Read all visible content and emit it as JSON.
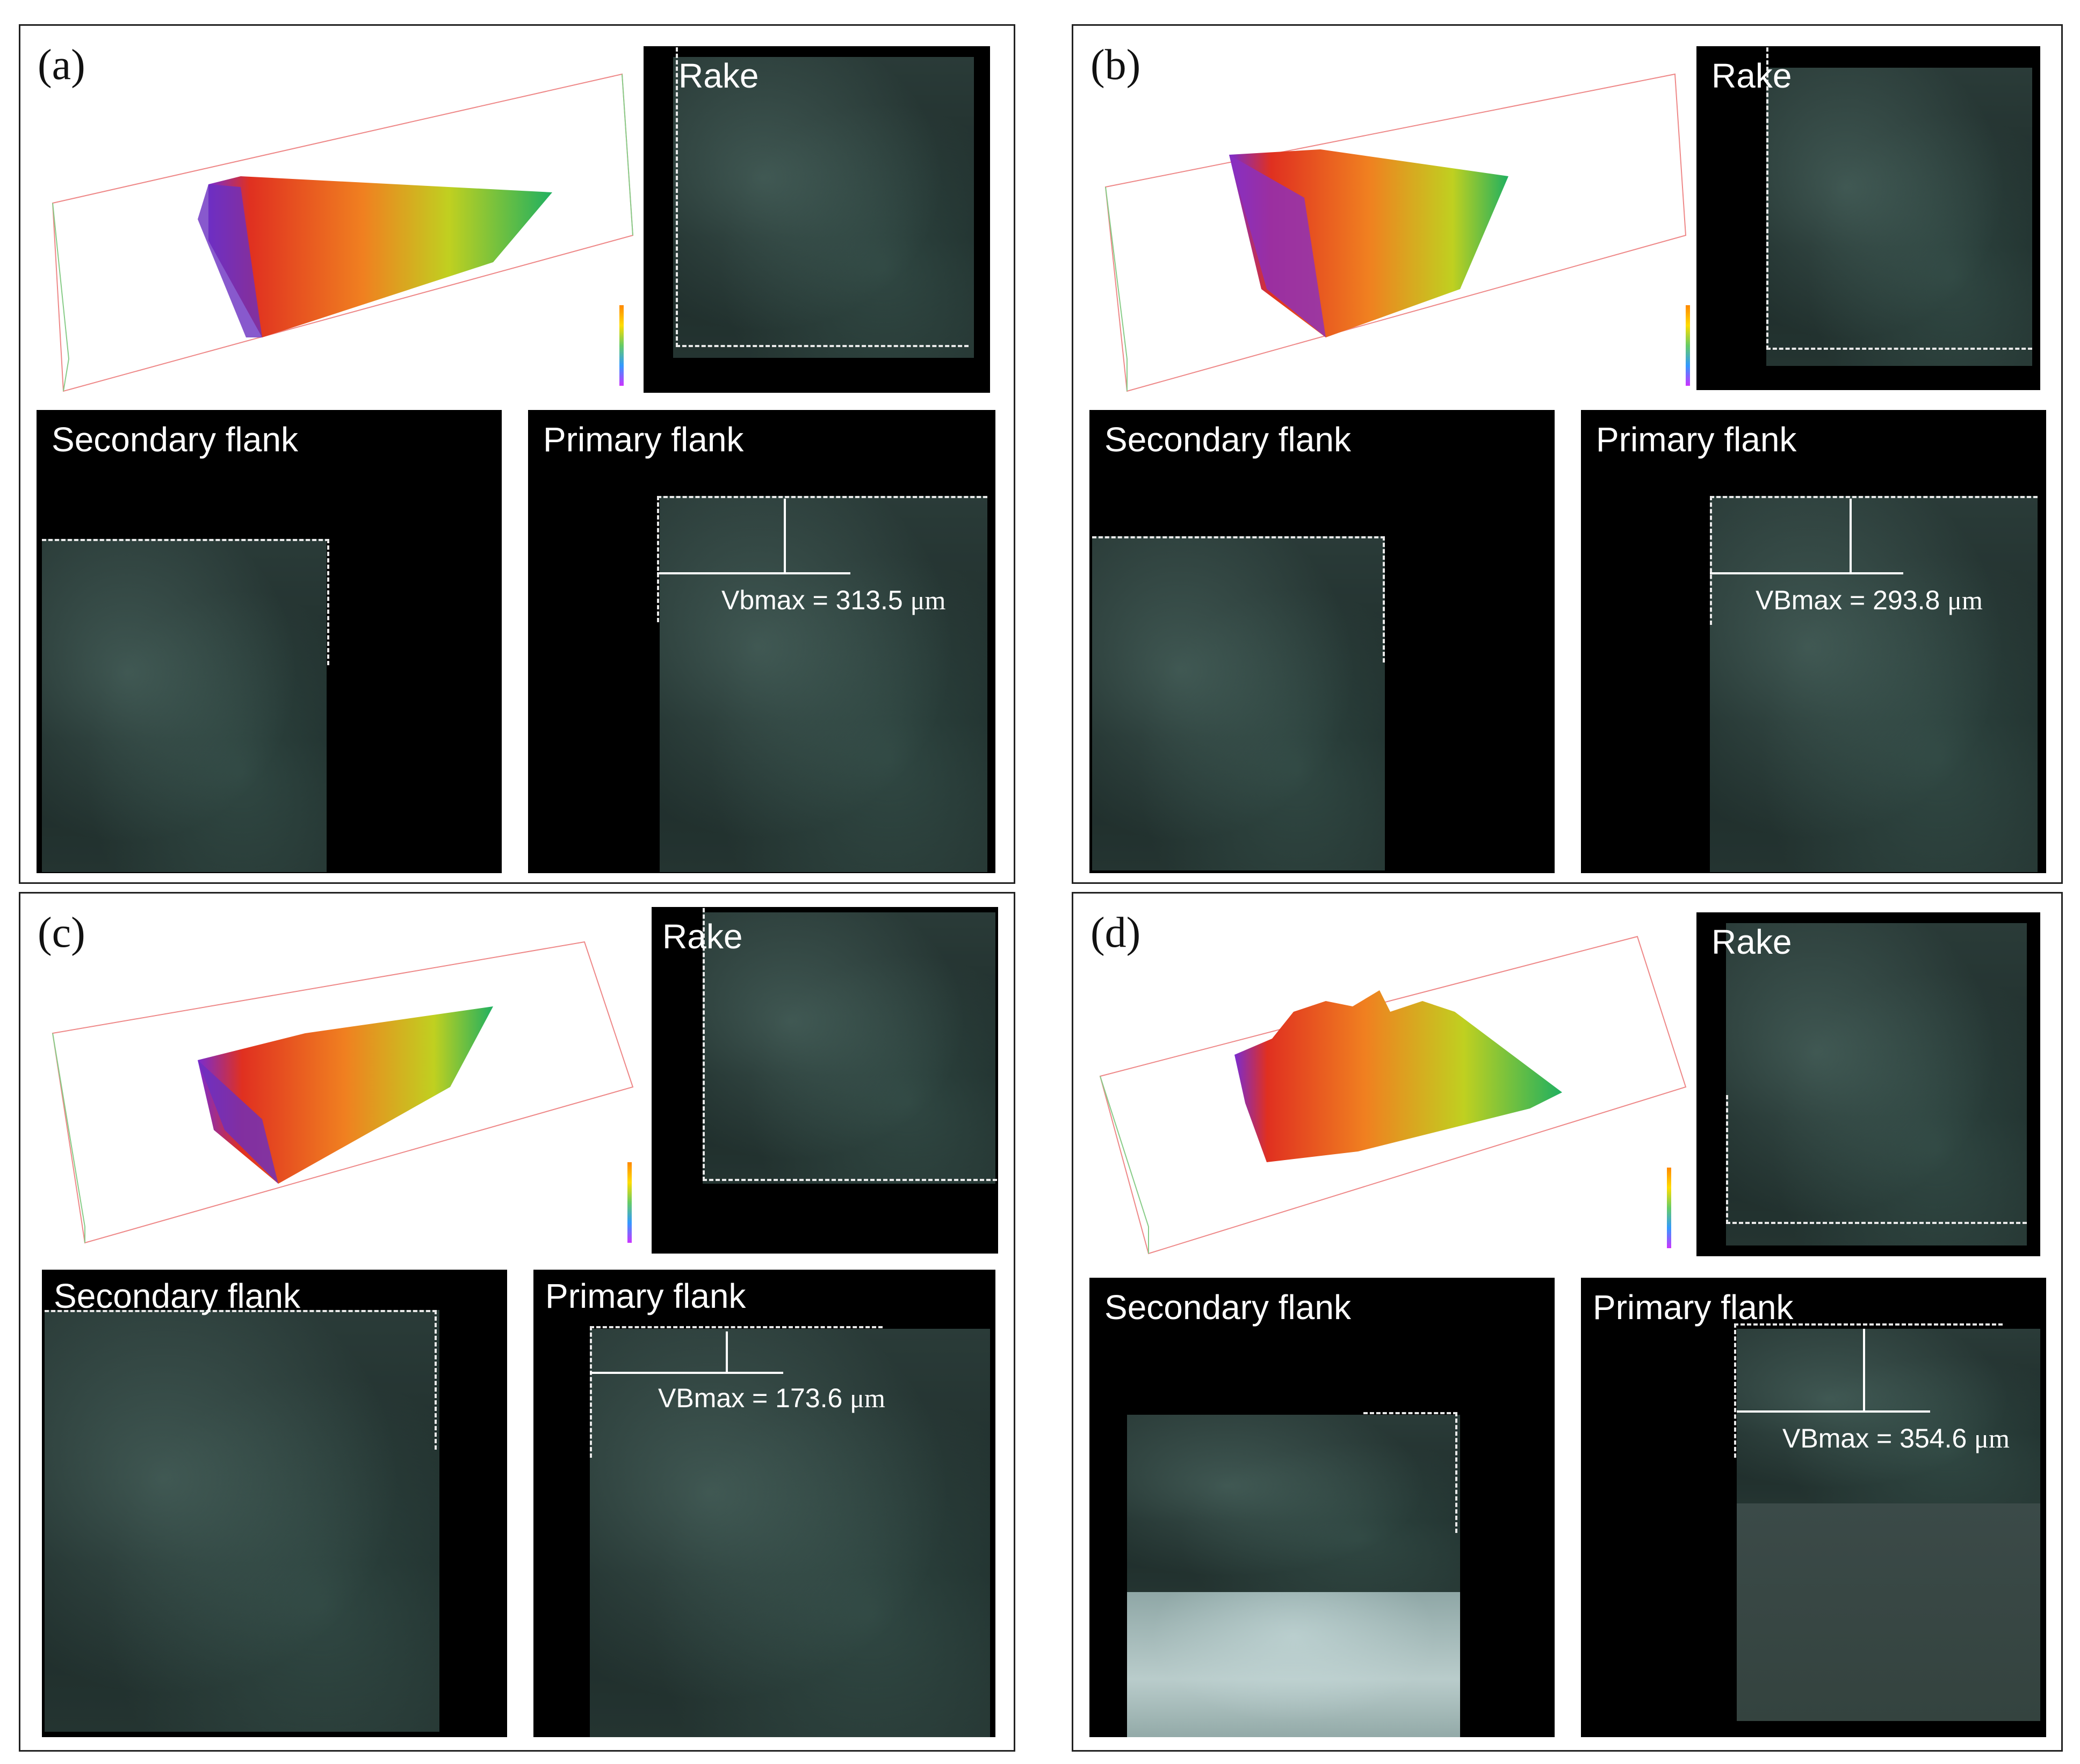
{
  "panels": [
    {
      "label": "(a)",
      "rake": "Rake",
      "secondary": "Secondary flank",
      "primary": "Primary flank",
      "vb_prefix": "Vbmax = ",
      "vb_value": "313.5",
      "vb_unit": "μm"
    },
    {
      "label": "(b)",
      "rake": "Rake",
      "secondary": "Secondary flank",
      "primary": "Primary flank",
      "vb_prefix": "VBmax = ",
      "vb_value": "293.8",
      "vb_unit": "μm"
    },
    {
      "label": "(c)",
      "rake": "Rake",
      "secondary": "Secondary flank",
      "primary": "Primary flank",
      "vb_prefix": "VBmax = ",
      "vb_value": "173.6",
      "vb_unit": "μm"
    },
    {
      "label": "(d)",
      "rake": "Rake",
      "secondary": "Secondary flank",
      "primary": "Primary flank",
      "vb_prefix": "VBmax = ",
      "vb_value": "354.6",
      "vb_unit": "μm"
    }
  ],
  "colors": {
    "border": "#222222",
    "image_bg": "#000000",
    "dashed": "#e8e8e8",
    "text_on_image": "#ffffff"
  },
  "icons": [
    "colorscale-legend-icon",
    "tool-tip-3d-model"
  ]
}
